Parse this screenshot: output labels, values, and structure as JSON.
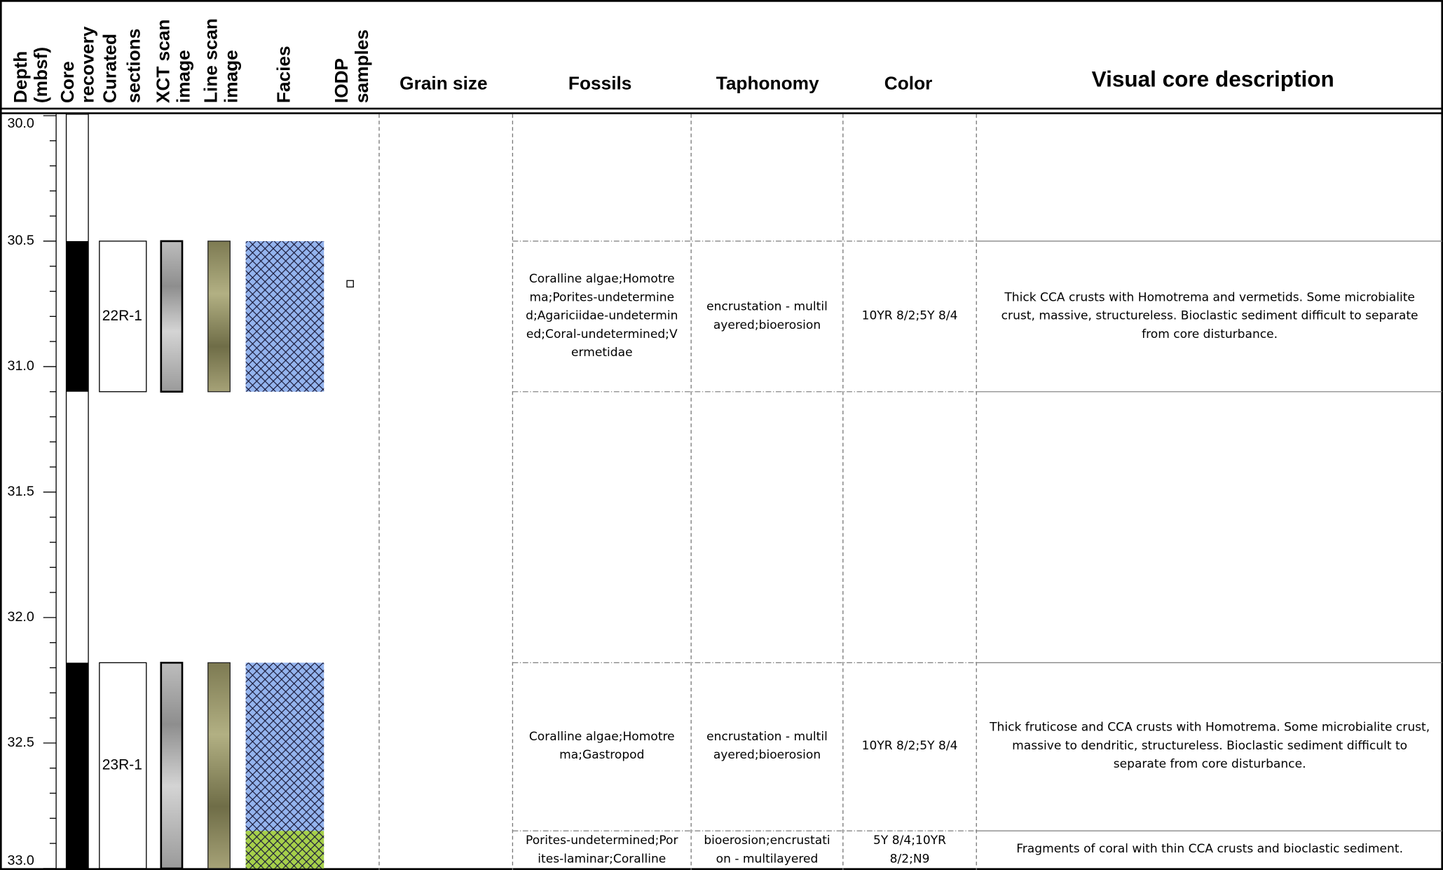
{
  "header": {
    "rotated": [
      [
        "Depth",
        "(mbsf)"
      ],
      [
        "Core",
        "recovery"
      ],
      [
        "Curated",
        "sections"
      ],
      [
        "XCT scan",
        "image"
      ],
      [
        "Line scan",
        "image"
      ],
      [
        "Facies"
      ],
      [
        "IODP",
        "samples"
      ]
    ],
    "columns": [
      "Grain size",
      "Fossils",
      "Taphonomy",
      "Color",
      "Visual core description"
    ]
  },
  "depth_ticks": [
    "30.0",
    "30.5",
    "31.0",
    "31.5",
    "32.0",
    "32.5",
    "33.0"
  ],
  "sections": [
    {
      "label": "22R-1",
      "top": 30.5,
      "bottom": 31.1
    },
    {
      "label": "23R-1",
      "top": 32.18,
      "bottom": 33.0
    }
  ],
  "samples": [
    30.67
  ],
  "rows": [
    {
      "top": 30.5,
      "bottom": 31.1,
      "facies_color": "#94b4ee",
      "fossils": "Coralline algae;Homotrema;Porites-undetermined;Agariciidae-undetermined;Coral-undetermined;Vermetidae",
      "taphonomy": "encrustation - multilayered;bioerosion",
      "color": "10YR 8/2;5Y 8/4",
      "description": "Thick CCA crusts with Homotrema and vermetids. Some microbialite crust, massive, structureless. Bioclastic sediment difficult to separate from core disturbance."
    },
    {
      "top": 32.18,
      "bottom": 32.85,
      "facies_color": "#94b4ee",
      "fossils": "Coralline algae;Homotrema;Gastropod",
      "taphonomy": "encrustation - multilayered;bioerosion",
      "color": "10YR 8/2;5Y 8/4",
      "description": "Thick fruticose and CCA crusts with Homotrema. Some microbialite crust, massive to dendritic, structureless. Bioclastic sediment difficult to separate from core disturbance."
    },
    {
      "top": 32.85,
      "bottom": 33.0,
      "facies_color": "#a6d04a",
      "fossils": "Porites-undetermined;Porites-laminar;Coralline",
      "taphonomy": "bioerosion;encrustation - multilayered",
      "color": "5Y 8/4;10YR 8/2;N9",
      "description": "Fragments of coral with thin CCA crusts and bioclastic sediment."
    }
  ]
}
